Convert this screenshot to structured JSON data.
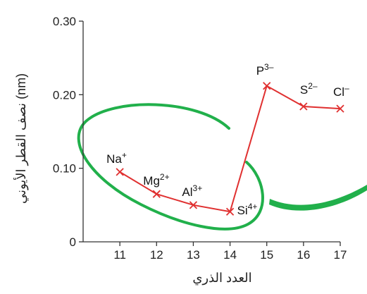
{
  "chart_data": {
    "type": "line",
    "title": "",
    "xlabel": "العدد الذري",
    "ylabel": "نصف القطر الأيوني (nm)",
    "x": [
      11,
      12,
      13,
      14,
      15,
      16,
      17
    ],
    "ylim": [
      0,
      0.3
    ],
    "xlim": [
      10,
      17
    ],
    "y_ticks": [
      0,
      0.1,
      0.2,
      0.3
    ],
    "y_tick_labels": [
      "0",
      "0.10",
      "0.20",
      "0.30"
    ],
    "x_tick_labels": [
      "11",
      "12",
      "13",
      "14",
      "15",
      "16",
      "17"
    ],
    "grid": false,
    "series": [
      {
        "values": [
          0.095,
          0.065,
          0.05,
          0.041,
          0.212,
          0.184,
          0.181
        ],
        "color": "#e03030",
        "marker": "x"
      }
    ],
    "point_labels": [
      {
        "x": 11,
        "base": "Na",
        "sup": "+"
      },
      {
        "x": 12,
        "base": "Mg",
        "sup": "2+"
      },
      {
        "x": 13,
        "base": "Al",
        "sup": "3+"
      },
      {
        "x": 14,
        "base": "Si",
        "sup": "4+"
      },
      {
        "x": 15,
        "base": "P",
        "sup": "3–"
      },
      {
        "x": 16,
        "base": "S",
        "sup": "2–"
      },
      {
        "x": 17,
        "base": "Cl",
        "sup": "–"
      }
    ],
    "annotations": [
      {
        "type": "ellipse-highlight",
        "color": "#21b04b",
        "encloses": [
          "Na",
          "Mg",
          "Al",
          "Si"
        ]
      }
    ]
  }
}
